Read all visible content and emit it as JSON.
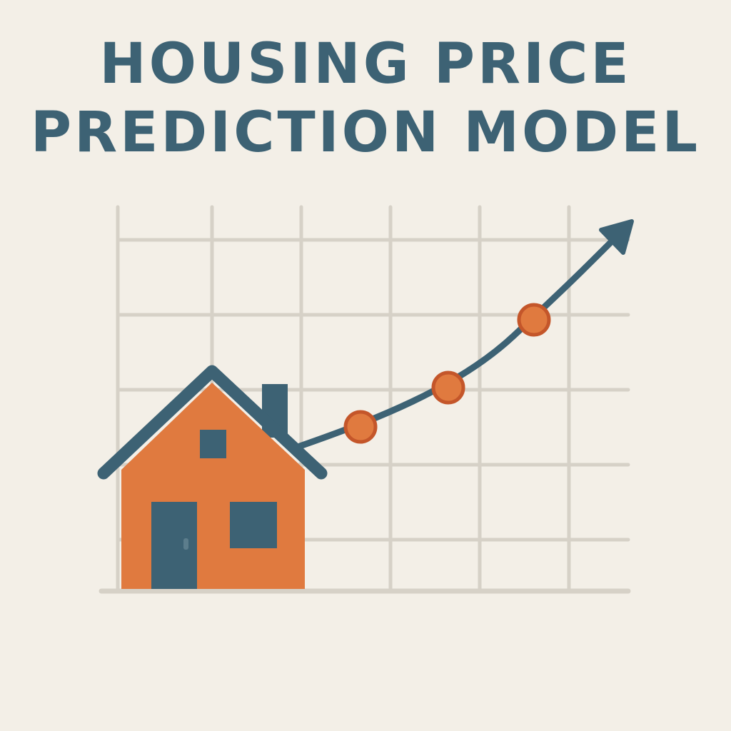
{
  "title": {
    "line1": "HOUSING PRICE",
    "line2": "PREDICTION MODEL"
  },
  "colors": {
    "background": "#f3efe7",
    "title": "#3d6274",
    "house": "#e07a3f",
    "roof_and_trend": "#3d6274",
    "markers": "#e07a3f",
    "grid": "#d6d1c7"
  },
  "icons": [
    "house-icon",
    "trend-arrow-icon"
  ],
  "trend": {
    "direction": "upward",
    "marker_count": 3
  }
}
